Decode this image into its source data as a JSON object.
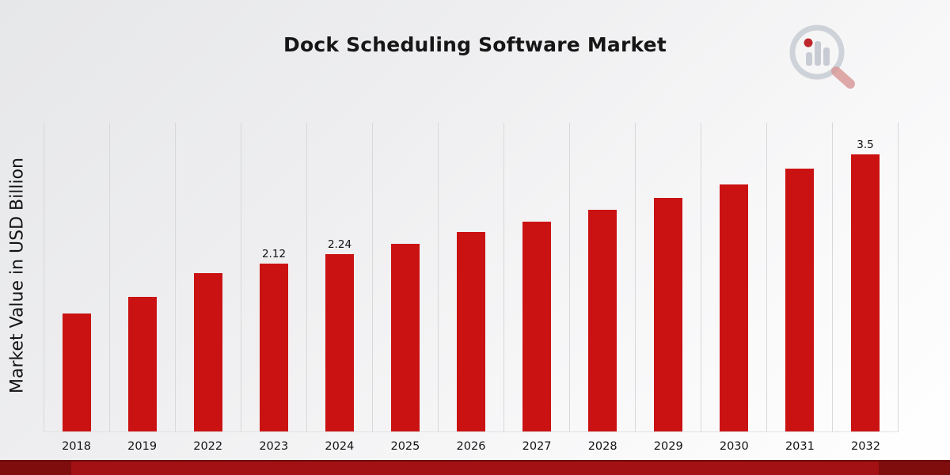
{
  "page": {
    "title": "Dock Scheduling Software Market"
  },
  "branding": {
    "logo": "market-research-future-logo"
  },
  "colors": {
    "bar": "#CB1212",
    "strip_dark": "#7F0D0D",
    "strip_mid": "#A31114",
    "gridline": "#D8D8D8",
    "logo_gray": "#C7CBD3",
    "logo_red": "#C0272D",
    "logo_handle": "#D99B99"
  },
  "chart_data": {
    "type": "bar",
    "title": "Dock Scheduling Software Market",
    "xlabel": "",
    "ylabel": "Market Value in USD Billion",
    "categories": [
      "2018",
      "2019",
      "2022",
      "2023",
      "2024",
      "2025",
      "2026",
      "2027",
      "2028",
      "2029",
      "2030",
      "2031",
      "2032"
    ],
    "values": [
      1.49,
      1.7,
      2.0,
      2.12,
      2.24,
      2.37,
      2.52,
      2.65,
      2.8,
      2.95,
      3.12,
      3.32,
      3.5
    ],
    "data_labels": [
      "",
      "",
      "",
      "2.12",
      "2.24",
      "",
      "",
      "",
      "",
      "",
      "",
      "",
      "3.5"
    ],
    "ylim": [
      0,
      3.9
    ],
    "grid": "vertical-only",
    "legend": "none",
    "bar_color": "#CB1212"
  }
}
